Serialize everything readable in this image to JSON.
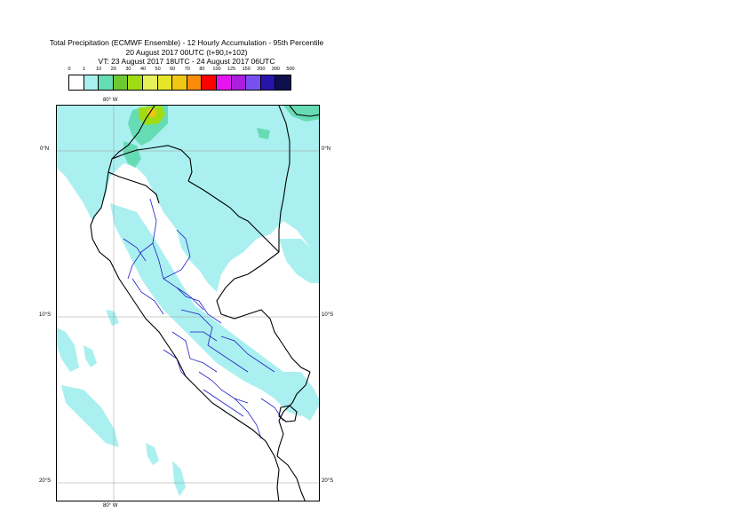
{
  "header": {
    "title": "Total Precipitation (ECMWF Ensemble) - 12 Hourly Accumulation - 95th Percentile",
    "run": "20 August 2017 00UTC (t+90,t+102)",
    "valid": "VT: 23 August 2017 18UTC - 24 August 2017 06UTC"
  },
  "legend": {
    "labels": [
      "0",
      "1",
      "10",
      "20",
      "30",
      "40",
      "50",
      "60",
      "70",
      "80",
      "100",
      "125",
      "150",
      "200",
      "300",
      "500"
    ],
    "colors": [
      "#ffffff",
      "#aaf0f0",
      "#66dcb4",
      "#6ec832",
      "#a0dc14",
      "#e6f05a",
      "#e6e628",
      "#f0c814",
      "#fa8c0a",
      "#ff0000",
      "#e614f0",
      "#aa1edc",
      "#7850f0",
      "#2814aa",
      "#0f0f50"
    ]
  },
  "map": {
    "lon_labels": {
      "top": "80° W",
      "bottom": "80° W"
    },
    "lat_labels": [
      {
        "left": "0°N",
        "right": "0°N"
      },
      {
        "left": "10°S",
        "right": "10°S"
      },
      {
        "left": "20°S",
        "right": "20°S"
      }
    ],
    "colors": {
      "precip_light": "#aaf0f0",
      "precip_moderate": "#66dcb4",
      "precip_heavy": "#a0dc14",
      "precip_peak": "#f0c814",
      "country_border": "#000000",
      "admin_border": "#1e1ec8",
      "graticule": "#999999"
    }
  }
}
